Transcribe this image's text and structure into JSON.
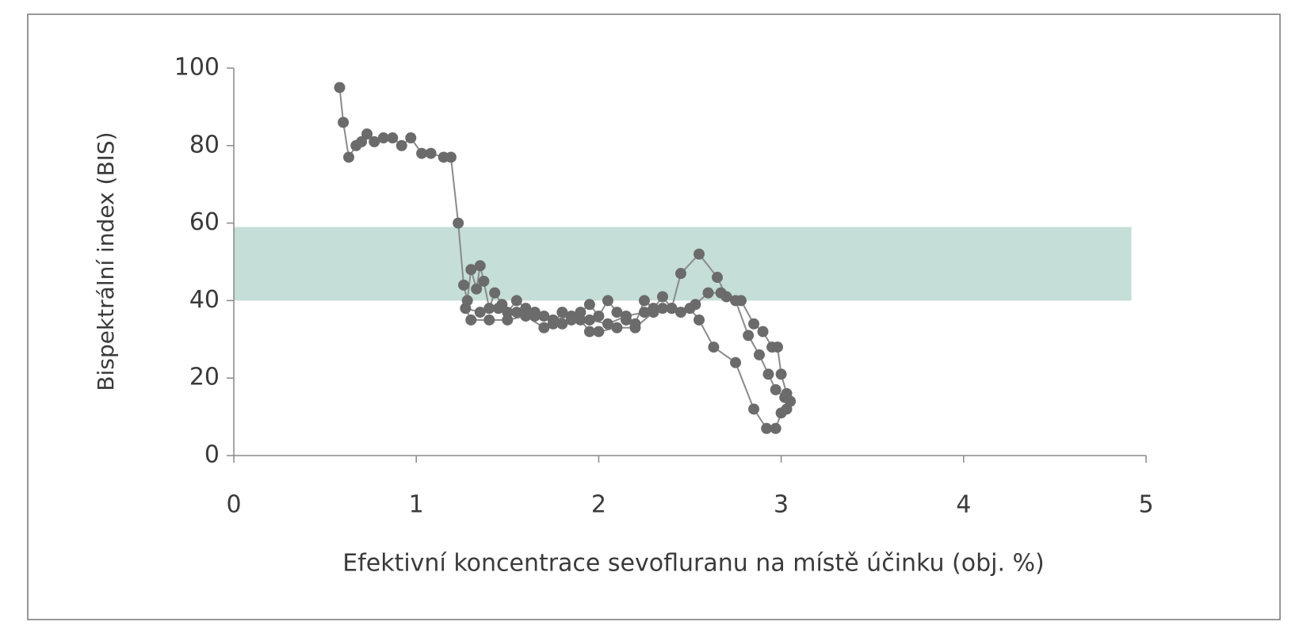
{
  "chart_data": {
    "type": "line",
    "x_label": "Efektivní koncentrace sevofluranu na místě účinku (obj. %)",
    "y_label": "Bispektrální index (BIS)",
    "xlim": [
      0,
      5
    ],
    "xticks": [
      0,
      1,
      2,
      3,
      4,
      5
    ],
    "ylim": [
      0,
      100
    ],
    "yticks": [
      0,
      20,
      40,
      60,
      80,
      100
    ],
    "shaded_band": {
      "xlim": [
        0,
        4.92
      ],
      "ylim": [
        40,
        59
      ],
      "color": "#c5ded7"
    },
    "series": [
      {
        "color": "#6b6b6b",
        "x": [
          0.58,
          0.6,
          0.63,
          0.67,
          0.7,
          0.73,
          0.77,
          0.82,
          0.87,
          0.92,
          0.97,
          1.03,
          1.08,
          1.15,
          1.19,
          1.23,
          1.26,
          1.28,
          1.3,
          1.33,
          1.35,
          1.37,
          1.4,
          1.43,
          1.47,
          1.5,
          1.55,
          1.6,
          1.65,
          1.7,
          1.75,
          1.8,
          1.85,
          1.9,
          1.95,
          2.0,
          2.05,
          2.1,
          2.15,
          2.2,
          2.25,
          2.3,
          2.35,
          2.4,
          2.45,
          2.55,
          2.65,
          2.7,
          2.78,
          2.85,
          2.9,
          2.95,
          2.98,
          3.0,
          3.03,
          3.05,
          3.03,
          3.0,
          2.97,
          2.92,
          2.85,
          2.75,
          2.63,
          2.55,
          2.5,
          2.4,
          2.3,
          2.2,
          2.1,
          2.0,
          1.95,
          1.9,
          1.8,
          1.7,
          1.6,
          1.5,
          1.4,
          1.3,
          1.27,
          1.35,
          1.45,
          1.55,
          1.65,
          1.75,
          1.85,
          1.95,
          2.05,
          2.15,
          2.25,
          2.35,
          2.45,
          2.53,
          2.6,
          2.67,
          2.75,
          2.82,
          2.88,
          2.93,
          2.97,
          3.02
        ],
        "values": [
          95,
          86,
          77,
          80,
          81,
          83,
          81,
          82,
          82,
          80,
          82,
          78,
          78,
          77,
          77,
          60,
          44,
          40,
          48,
          43,
          49,
          45,
          38,
          42,
          39,
          37,
          40,
          38,
          37,
          36,
          34,
          37,
          35,
          37,
          39,
          36,
          40,
          37,
          35,
          34,
          40,
          38,
          41,
          38,
          47,
          52,
          46,
          41,
          40,
          34,
          32,
          28,
          28,
          21,
          16,
          14,
          12,
          11,
          7,
          7,
          12,
          24,
          28,
          35,
          38,
          38,
          37,
          33,
          33,
          32,
          32,
          35,
          34,
          33,
          36,
          35,
          35,
          35,
          38,
          37,
          38,
          37,
          36,
          35,
          36,
          35,
          34,
          36,
          37,
          38,
          37,
          39,
          42,
          42,
          40,
          31,
          26,
          21,
          17,
          15
        ]
      }
    ]
  }
}
